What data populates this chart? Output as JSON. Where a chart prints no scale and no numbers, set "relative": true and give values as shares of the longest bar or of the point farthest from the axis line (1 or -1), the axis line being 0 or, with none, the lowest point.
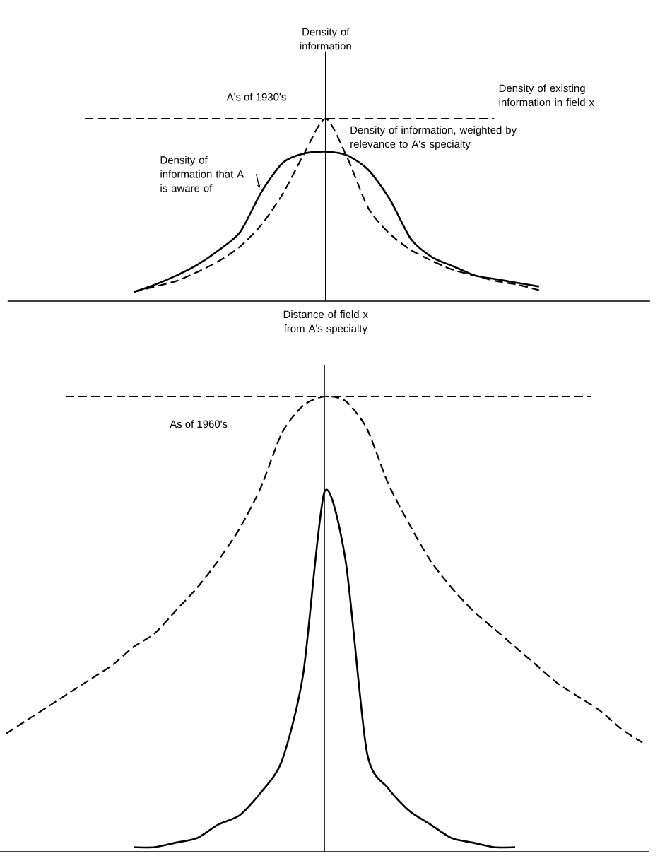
{
  "chart_data": [
    {
      "type": "line",
      "relative": true,
      "title": "A's of 1930's",
      "ylabel": "Density of information",
      "xlabel": "Distance of field x from A's specialty",
      "categories": [
        null,
        null,
        null,
        null,
        null,
        null,
        null,
        null,
        null,
        null,
        null,
        null,
        null,
        null,
        null,
        null,
        null,
        null,
        null,
        null
      ],
      "series": [
        {
          "name": "Density of information, weighted by relevance to A's specialty",
          "color": "#000000",
          "line_style": "dashed",
          "values": [
            0.05,
            0.08,
            0.11,
            0.16,
            0.22,
            0.3,
            0.42,
            0.59,
            0.81,
            1.0,
            0.79,
            0.51,
            0.37,
            0.28,
            0.22,
            0.17,
            0.14,
            0.11,
            0.09,
            0.06
          ]
        },
        {
          "name": "Density of information that A is aware of",
          "color": "#000000",
          "line_style": "solid",
          "values": [
            0.05,
            0.09,
            0.14,
            0.2,
            0.28,
            0.38,
            0.6,
            0.76,
            0.81,
            0.82,
            0.8,
            0.72,
            0.56,
            0.34,
            0.24,
            0.19,
            0.14,
            0.12,
            0.1,
            0.08
          ]
        }
      ],
      "ref_lines": [
        {
          "axis": "y",
          "value": 1,
          "label": "Density of existing information in field x",
          "line_style": "dashed"
        }
      ]
    },
    {
      "type": "line",
      "relative": true,
      "title": "As of 1960's",
      "categories": [
        null,
        null,
        null,
        null,
        null,
        null,
        null,
        null,
        null,
        null,
        null,
        null,
        null,
        null,
        null,
        null,
        null,
        null,
        null,
        null,
        null,
        null,
        null,
        null,
        null,
        null,
        null,
        null,
        null,
        null,
        null
      ],
      "series": [
        {
          "color": "#000000",
          "line_style": "dashed",
          "values": [
            0.26,
            0.29,
            0.32,
            0.35,
            0.38,
            0.41,
            0.45,
            0.48,
            0.53,
            0.58,
            0.64,
            0.71,
            0.8,
            0.92,
            0.98,
            1.0,
            0.99,
            0.93,
            0.81,
            0.72,
            0.64,
            0.58,
            0.53,
            0.49,
            0.45,
            0.41,
            0.37,
            0.34,
            0.31,
            0.27,
            0.24
          ]
        },
        {
          "color": "#000000",
          "line_style": "solid",
          "values": [
            null,
            null,
            null,
            null,
            null,
            null,
            0.01,
            0.01,
            0.02,
            0.03,
            0.06,
            0.08,
            0.13,
            0.2,
            0.39,
            0.79,
            0.64,
            0.22,
            0.14,
            0.09,
            0.06,
            0.03,
            0.02,
            0.01,
            0.01,
            null,
            null,
            null,
            null,
            null,
            null
          ]
        }
      ],
      "ref_lines": [
        {
          "axis": "y",
          "value": 1,
          "line_style": "dashed"
        }
      ]
    }
  ]
}
